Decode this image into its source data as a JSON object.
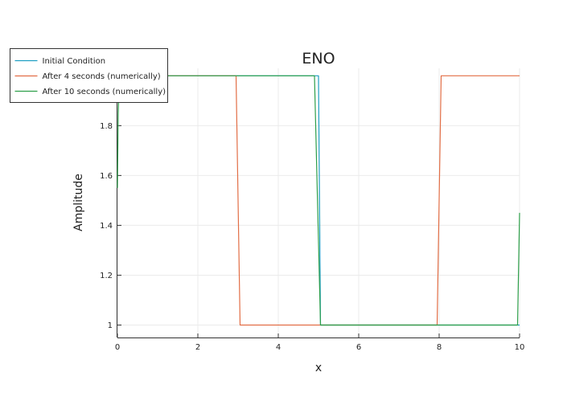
{
  "chart_data": {
    "type": "line",
    "title": "ENO",
    "xlabel": "x",
    "ylabel": "Amplitude",
    "xlim": [
      0,
      10
    ],
    "ylim": [
      0.95,
      2.03
    ],
    "xticks": [
      0,
      2,
      4,
      6,
      8,
      10
    ],
    "yticks": [
      1,
      1.2,
      1.4,
      1.6,
      1.8
    ],
    "grid": true,
    "legend_position": "top-left",
    "series": [
      {
        "name": "Initial Condition",
        "color": "#1f9ec2",
        "x": [
          0,
          0.05,
          4.95,
          5.0,
          5.05,
          10
        ],
        "y": [
          2,
          2,
          2,
          2,
          1,
          1
        ]
      },
      {
        "name": "After 4 seconds (numerically)",
        "color": "#e26e46",
        "x": [
          0,
          2.95,
          3.05,
          7.95,
          8.05,
          10
        ],
        "y": [
          2,
          2,
          1,
          1,
          2,
          2
        ]
      },
      {
        "name": "After 10 seconds (numerically)",
        "color": "#2e9f4a",
        "x": [
          0,
          0.02,
          0.05,
          4.9,
          5.05,
          9.95,
          10
        ],
        "y": [
          1.55,
          1.85,
          2,
          2,
          1,
          1,
          1.45
        ]
      }
    ]
  }
}
